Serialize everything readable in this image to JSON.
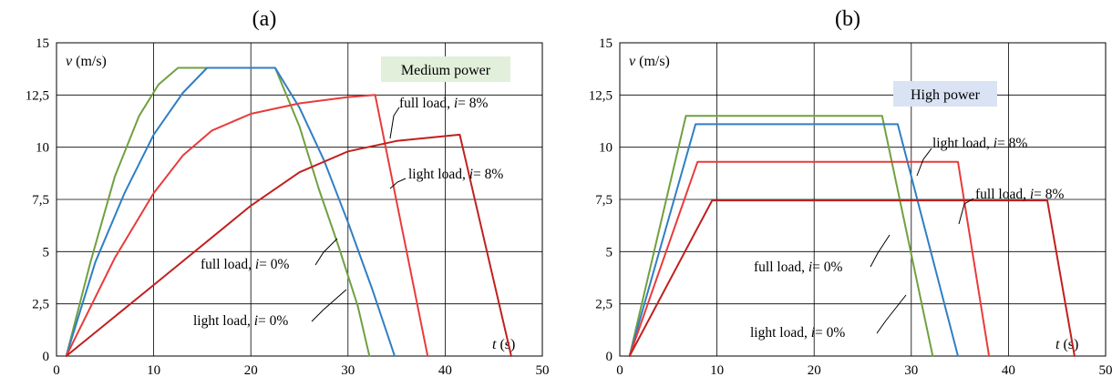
{
  "chart_data": [
    {
      "type": "line",
      "title": "(a)",
      "xlabel": "t (s)",
      "ylabel": "v (m/s)",
      "xlim": [
        0,
        50
      ],
      "ylim": [
        0,
        15
      ],
      "xticks": [
        "0",
        "10",
        "20",
        "30",
        "40",
        "50"
      ],
      "yticks": [
        "0",
        "2,5",
        "5",
        "7,5",
        "10",
        "12,5",
        "15"
      ],
      "grid": true,
      "badge": {
        "text": "Medium power",
        "color": "#e2efda"
      },
      "series": [
        {
          "name": "light load, i= 0%",
          "color": "#70a040",
          "points": [
            [
              1.0,
              0
            ],
            [
              3.5,
              4.5
            ],
            [
              6.0,
              8.6
            ],
            [
              8.5,
              11.5
            ],
            [
              10.5,
              13.0
            ],
            [
              12.5,
              13.8
            ],
            [
              22.5,
              13.8
            ],
            [
              25.0,
              11.0
            ],
            [
              27.0,
              8.0
            ],
            [
              29.0,
              5.3
            ],
            [
              31.0,
              2.4
            ],
            [
              32.2,
              0
            ]
          ]
        },
        {
          "name": "full load, i= 0%",
          "color": "#2f7fc4",
          "points": [
            [
              1.0,
              0
            ],
            [
              4.0,
              4.5
            ],
            [
              7.0,
              7.8
            ],
            [
              10.0,
              10.6
            ],
            [
              13.0,
              12.6
            ],
            [
              15.5,
              13.8
            ],
            [
              22.5,
              13.8
            ],
            [
              25.0,
              11.9
            ],
            [
              27.5,
              9.4
            ],
            [
              30.0,
              6.4
            ],
            [
              32.5,
              3.2
            ],
            [
              34.8,
              0
            ]
          ]
        },
        {
          "name": "light load, i= 8%",
          "color": "#e83b3b",
          "points": [
            [
              1.0,
              0
            ],
            [
              6.0,
              4.7
            ],
            [
              10.0,
              7.8
            ],
            [
              13.0,
              9.6
            ],
            [
              16.0,
              10.8
            ],
            [
              20.0,
              11.6
            ],
            [
              25.0,
              12.1
            ],
            [
              30.0,
              12.4
            ],
            [
              32.8,
              12.5
            ],
            [
              38.2,
              0
            ]
          ]
        },
        {
          "name": "full load, i= 8%",
          "color": "#c0201f",
          "points": [
            [
              1.0,
              0
            ],
            [
              10.0,
              3.4
            ],
            [
              20.0,
              7.2
            ],
            [
              25.0,
              8.8
            ],
            [
              30.0,
              9.8
            ],
            [
              35.0,
              10.3
            ],
            [
              41.5,
              10.6
            ],
            [
              46.8,
              0
            ]
          ]
        }
      ],
      "annotations": [
        {
          "prefix": "full load, ",
          "var": "i",
          "suffix": "= 8%"
        },
        {
          "prefix": "light load, ",
          "var": "i",
          "suffix": "= 8%"
        },
        {
          "prefix": "full load, ",
          "var": "i",
          "suffix": "= 0%"
        },
        {
          "prefix": "light load, ",
          "var": "i",
          "suffix": "= 0%"
        }
      ]
    },
    {
      "type": "line",
      "title": "(b)",
      "xlabel": "t (s)",
      "ylabel": "v (m/s)",
      "xlim": [
        0,
        50
      ],
      "ylim": [
        0,
        15
      ],
      "xticks": [
        "0",
        "10",
        "20",
        "30",
        "40",
        "50"
      ],
      "yticks": [
        "0",
        "2,5",
        "5",
        "7,5",
        "10",
        "12,5",
        "15"
      ],
      "grid": true,
      "badge": {
        "text": "High power",
        "color": "#dae3f3"
      },
      "series": [
        {
          "name": "light load, i= 0%",
          "color": "#70a040",
          "points": [
            [
              1.0,
              0
            ],
            [
              6.8,
              11.5
            ],
            [
              27.0,
              11.5
            ],
            [
              32.2,
              0
            ]
          ]
        },
        {
          "name": "full load, i= 0%",
          "color": "#2f7fc4",
          "points": [
            [
              1.0,
              0
            ],
            [
              7.8,
              11.1
            ],
            [
              28.6,
              11.1
            ],
            [
              34.8,
              0
            ]
          ]
        },
        {
          "name": "light load, i= 8%",
          "color": "#e83b3b",
          "points": [
            [
              1.0,
              0
            ],
            [
              8.0,
              9.3
            ],
            [
              34.8,
              9.3
            ],
            [
              38.0,
              0
            ]
          ]
        },
        {
          "name": "full load, i= 8%",
          "color": "#c0201f",
          "points": [
            [
              1.0,
              0
            ],
            [
              9.5,
              7.45
            ],
            [
              44.0,
              7.45
            ],
            [
              46.8,
              0
            ]
          ]
        }
      ],
      "annotations": [
        {
          "prefix": "light load, ",
          "var": "i",
          "suffix": "= 8%"
        },
        {
          "prefix": "full load, ",
          "var": "i",
          "suffix": "= 8%"
        },
        {
          "prefix": "full load, ",
          "var": "i",
          "suffix": "= 0%"
        },
        {
          "prefix": "light load, ",
          "var": "i",
          "suffix": "= 0%"
        }
      ]
    }
  ]
}
